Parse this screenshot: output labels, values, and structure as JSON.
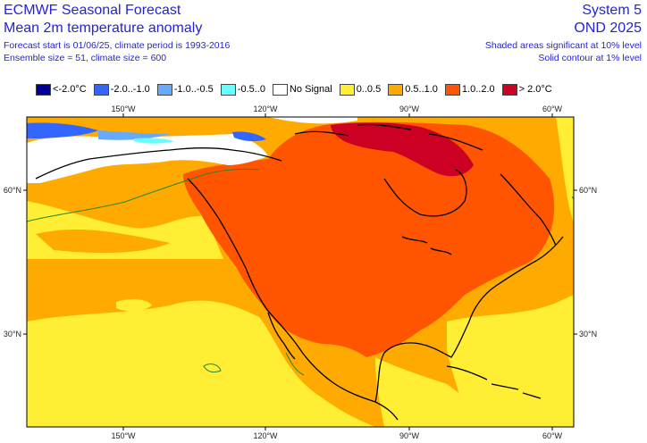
{
  "header": {
    "title1": "ECMWF Seasonal Forecast",
    "title2": "Mean 2m temperature anomaly",
    "subtitle1": "Forecast start is 01/06/25, climate period is 1993-2016",
    "subtitle2": "Ensemble size = 51, climate size = 600",
    "system": "System 5",
    "season": "OND 2025",
    "note1": "Shaded areas significant at 10% level",
    "note2": "Solid contour at 1% level"
  },
  "legend": [
    {
      "label": "<-2.0°C",
      "color": "#000099"
    },
    {
      "label": "-2.0..-1.0",
      "color": "#3366ff"
    },
    {
      "label": "-1.0..-0.5",
      "color": "#66aaff"
    },
    {
      "label": "-0.5..0",
      "color": "#66ffff"
    },
    {
      "label": "No Signal",
      "color": "#ffffff"
    },
    {
      "label": "0..0.5",
      "color": "#ffee33"
    },
    {
      "label": "0.5..1.0",
      "color": "#ffaa00"
    },
    {
      "label": "1.0..2.0",
      "color": "#ff5500"
    },
    {
      "label": "> 2.0°C",
      "color": "#cc0022"
    }
  ],
  "axes": {
    "top_lon": [
      "150°W",
      "120°W",
      "90°W",
      "60°W"
    ],
    "bottom_lon": [
      "150°W",
      "120°W",
      "90°W",
      "60°W"
    ],
    "left_lat": [
      "60°N",
      "30°N"
    ],
    "right_lat": [
      "60°N",
      "30°N"
    ]
  },
  "map_region": "North America and adjacent Pacific / Atlantic"
}
